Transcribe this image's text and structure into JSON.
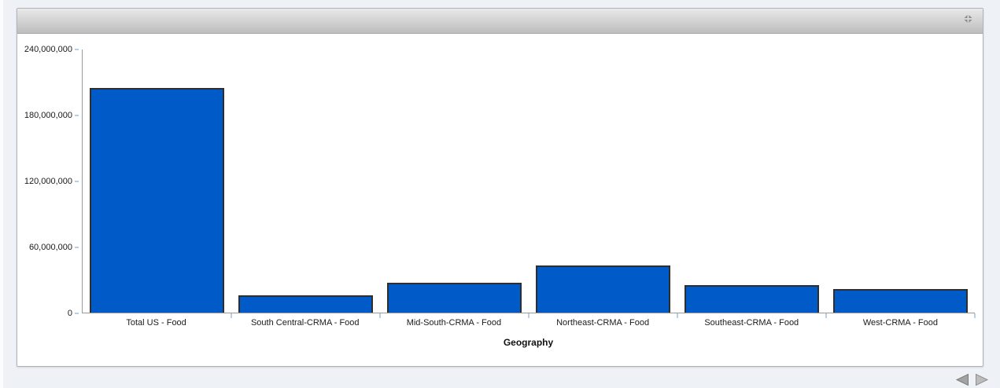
{
  "page": {
    "background_color": "#eef1f5",
    "panel_border_color": "#b0b3b8"
  },
  "toolbar": {
    "maximize_icon": "maximize-icon",
    "icon_color": "#8d8d8d"
  },
  "chart_data": {
    "type": "bar",
    "title": "",
    "xlabel": "Geography",
    "ylabel": "",
    "categories": [
      "Total US - Food",
      "South Central-CRMA - Food",
      "Mid-South-CRMA - Food",
      "Northeast-CRMA - Food",
      "Southeast-CRMA - Food",
      "West-CRMA - Food"
    ],
    "values": [
      205000000,
      16000000,
      27000000,
      43000000,
      25000000,
      21500000
    ],
    "ylim": [
      0,
      240000000
    ],
    "yticks": [
      {
        "value": 0,
        "label": "0"
      },
      {
        "value": 60000000,
        "label": "60,000,000"
      },
      {
        "value": 120000000,
        "label": "120,000,000"
      },
      {
        "value": 180000000,
        "label": "180,000,000"
      },
      {
        "value": 240000000,
        "label": "240,000,000"
      }
    ],
    "grid": false,
    "legend": false,
    "bar_color": "#005AC8",
    "bar_border_color": "#2e2e2e",
    "axis_line_color": "#9a9a9a",
    "tick_mark_color": "#b9cfe6"
  },
  "pager": {
    "prev_icon": "previous-page-arrow",
    "next_icon": "next-page-arrow",
    "prev_color": "#a3a3a3",
    "next_color": "#bcbcbc"
  }
}
